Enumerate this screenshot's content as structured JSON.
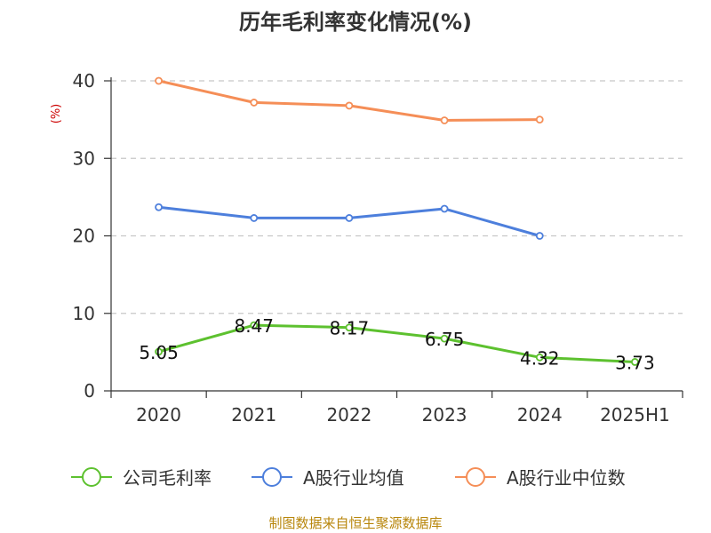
{
  "chart_data": {
    "type": "line",
    "title": "历年毛利率变化情况(%)",
    "ylabel": "(%)",
    "xlabel": "",
    "categories": [
      "2020",
      "2021",
      "2022",
      "2023",
      "2024",
      "2025H1"
    ],
    "ylim": [
      0,
      40
    ],
    "yticks": [
      "0",
      "10",
      "20",
      "30",
      "40"
    ],
    "grid": true,
    "legend_position": "bottom",
    "series": [
      {
        "name": "公司毛利率",
        "color": "#5dc12f",
        "values": [
          5.05,
          8.47,
          8.17,
          6.75,
          4.32,
          3.73
        ],
        "labels": [
          "5.05",
          "8.47",
          "8.17",
          "6.75",
          "4.32",
          "3.73"
        ]
      },
      {
        "name": "A股行业均值",
        "color": "#4d7fdc",
        "values": [
          23.7,
          22.3,
          22.3,
          23.5,
          20.0,
          null
        ]
      },
      {
        "name": "A股行业中位数",
        "color": "#f58e57",
        "values": [
          40.0,
          37.2,
          36.8,
          34.9,
          35.0,
          null
        ]
      }
    ],
    "source": "制图数据来自恒生聚源数据库",
    "colors": {
      "axis": "#333333",
      "grid": "#c8c8c8",
      "unit": "#cc0000",
      "source": "#b8860b"
    }
  }
}
